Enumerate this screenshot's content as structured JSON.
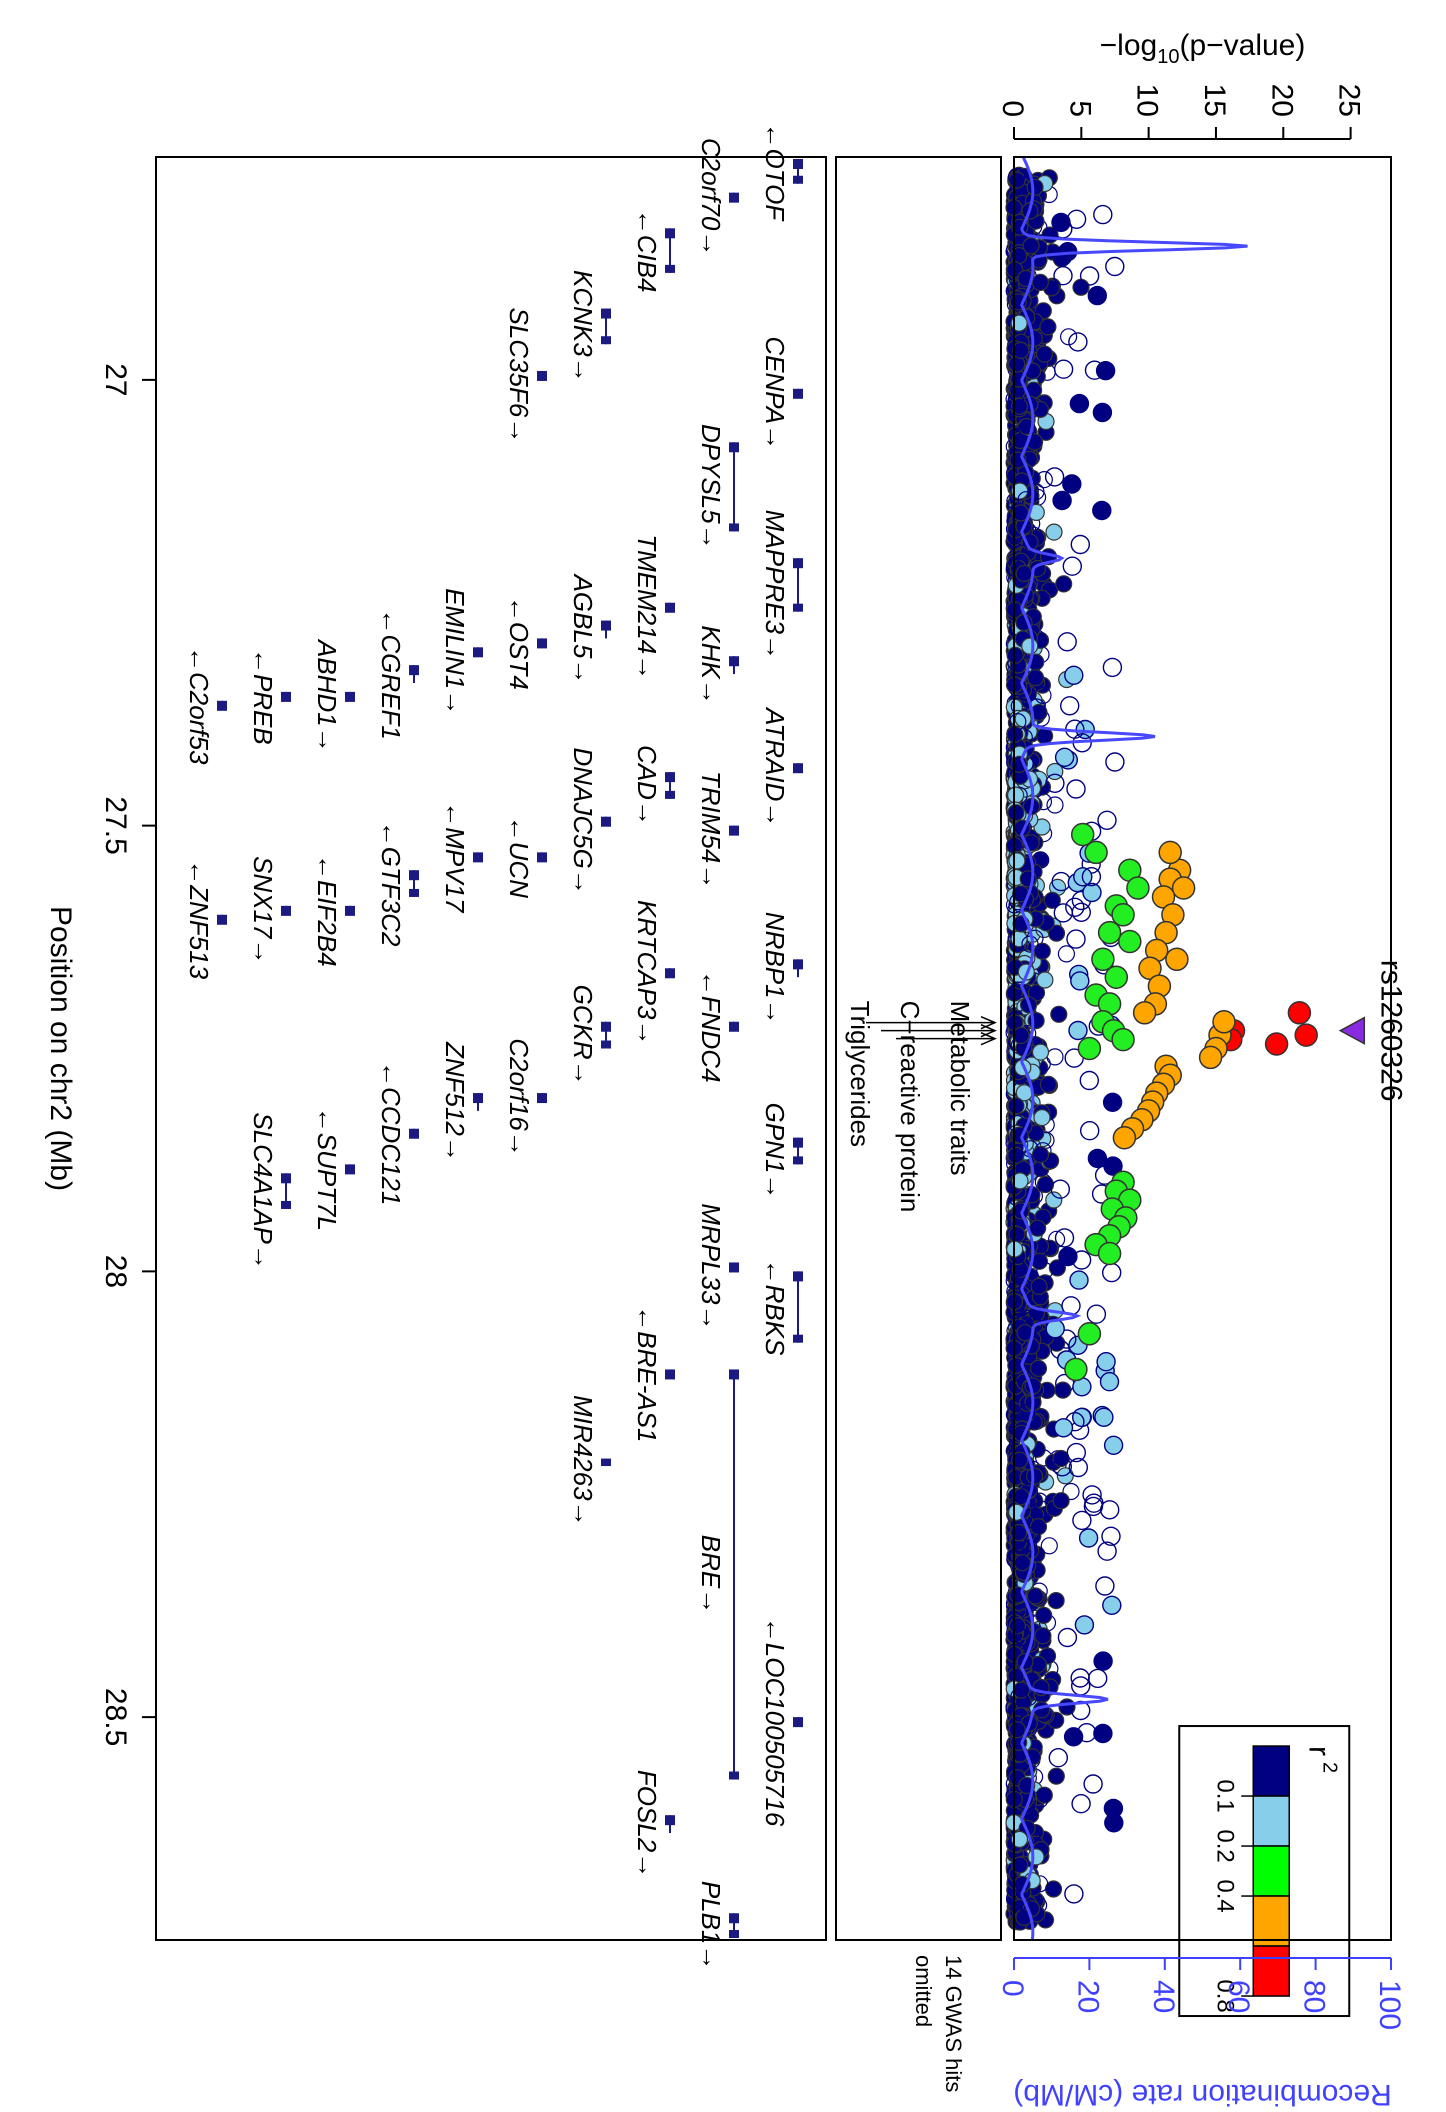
{
  "chart_data": {
    "type": "scatter",
    "x_axis": {
      "label": "Position on chr2 (Mb)",
      "range": [
        26.75,
        28.75
      ],
      "ticks": [
        {
          "value": 27,
          "label": "27"
        },
        {
          "value": 27.5,
          "label": "27.5"
        },
        {
          "value": 28,
          "label": "28"
        },
        {
          "value": 28.5,
          "label": "28.5"
        }
      ]
    },
    "y_axis": {
      "label_prefix": "−log",
      "label_sub": "10",
      "label_suffix": "(p−value)",
      "range": [
        0,
        28
      ],
      "ticks": [
        {
          "value": 0,
          "label": "0"
        },
        {
          "value": 5,
          "label": "5"
        },
        {
          "value": 10,
          "label": "10"
        },
        {
          "value": 15,
          "label": "15"
        },
        {
          "value": 20,
          "label": "20"
        },
        {
          "value": 25,
          "label": "25"
        }
      ]
    },
    "y2_axis": {
      "label": "Recombination rate (cM/Mb)",
      "range": [
        0,
        100
      ],
      "color": "#4040FF",
      "ticks": [
        {
          "value": 0,
          "label": "0"
        },
        {
          "value": 20,
          "label": "20"
        },
        {
          "value": 40,
          "label": "40"
        },
        {
          "value": 60,
          "label": "60"
        },
        {
          "value": 80,
          "label": "80"
        },
        {
          "value": 100,
          "label": "100"
        }
      ]
    },
    "lead_snp": {
      "name": "rs1260326",
      "x": 27.73,
      "y": 25.2,
      "color": "#8A2BE2"
    },
    "legend": {
      "title": "r",
      "title_sup": "2",
      "placement": "top-right",
      "bins": [
        {
          "label": "0.1",
          "color": "#000080"
        },
        {
          "label": "0.2",
          "color": "#87CEEB"
        },
        {
          "label": "0.4",
          "color": "#00FF00"
        },
        {
          "label": "",
          "color": "#FFA500"
        },
        {
          "label": "0.8",
          "color": "#FF0000"
        }
      ]
    },
    "colors": {
      "dark": "#000080",
      "light": "#87CEEB",
      "green": "#22EE22",
      "orange": "#FFA500",
      "red": "#FF0000",
      "recomb": "#4848FF",
      "gene": "#1A1A80"
    },
    "gwas_track": {
      "hits": [
        {
          "label": "Metabolic traits",
          "x": 27.73
        },
        {
          "label": "C−reactive protein",
          "x": 27.73
        },
        {
          "label": "Triglycerides",
          "x": 27.73
        }
      ],
      "omitted_note_line1": "14 GWAS hits",
      "omitted_note_line2": "omitted"
    },
    "highlight_points": [
      {
        "x": 27.71,
        "y": 21.2,
        "r2": 0.9
      },
      {
        "x": 27.735,
        "y": 21.7,
        "r2": 0.9
      },
      {
        "x": 27.745,
        "y": 19.5,
        "r2": 0.9
      },
      {
        "x": 27.73,
        "y": 16.3,
        "r2": 0.85
      },
      {
        "x": 27.74,
        "y": 16.1,
        "r2": 0.85
      },
      {
        "x": 27.735,
        "y": 15.3,
        "r2": 0.7
      },
      {
        "x": 27.75,
        "y": 15.0,
        "r2": 0.7
      },
      {
        "x": 27.76,
        "y": 14.6,
        "r2": 0.7
      },
      {
        "x": 27.72,
        "y": 15.6,
        "r2": 0.7
      },
      {
        "x": 27.77,
        "y": 11.3,
        "r2": 0.7
      },
      {
        "x": 27.78,
        "y": 11.6,
        "r2": 0.7
      },
      {
        "x": 27.79,
        "y": 11.1,
        "r2": 0.7
      },
      {
        "x": 27.8,
        "y": 10.6,
        "r2": 0.7
      },
      {
        "x": 27.81,
        "y": 10.3,
        "r2": 0.7
      },
      {
        "x": 27.82,
        "y": 10.0,
        "r2": 0.7
      },
      {
        "x": 27.83,
        "y": 9.5,
        "r2": 0.7
      },
      {
        "x": 27.84,
        "y": 8.8,
        "r2": 0.7
      },
      {
        "x": 27.85,
        "y": 8.2,
        "r2": 0.7
      },
      {
        "x": 27.55,
        "y": 12.3,
        "r2": 0.7
      },
      {
        "x": 27.56,
        "y": 11.6,
        "r2": 0.7
      },
      {
        "x": 27.57,
        "y": 12.6,
        "r2": 0.7
      },
      {
        "x": 27.58,
        "y": 11.1,
        "r2": 0.7
      },
      {
        "x": 27.6,
        "y": 11.8,
        "r2": 0.7
      },
      {
        "x": 27.62,
        "y": 11.3,
        "r2": 0.7
      },
      {
        "x": 27.64,
        "y": 10.6,
        "r2": 0.7
      },
      {
        "x": 27.65,
        "y": 12.1,
        "r2": 0.7
      },
      {
        "x": 27.66,
        "y": 10.1,
        "r2": 0.7
      },
      {
        "x": 27.68,
        "y": 10.8,
        "r2": 0.7
      },
      {
        "x": 27.7,
        "y": 10.5,
        "r2": 0.7
      },
      {
        "x": 27.71,
        "y": 9.7,
        "r2": 0.7
      },
      {
        "x": 27.53,
        "y": 11.6,
        "r2": 0.7
      },
      {
        "x": 27.55,
        "y": 8.6,
        "r2": 0.5
      },
      {
        "x": 27.57,
        "y": 9.2,
        "r2": 0.5
      },
      {
        "x": 27.59,
        "y": 7.6,
        "r2": 0.5
      },
      {
        "x": 27.6,
        "y": 8.1,
        "r2": 0.5
      },
      {
        "x": 27.62,
        "y": 7.1,
        "r2": 0.5
      },
      {
        "x": 27.63,
        "y": 8.6,
        "r2": 0.5
      },
      {
        "x": 27.65,
        "y": 6.6,
        "r2": 0.5
      },
      {
        "x": 27.67,
        "y": 7.6,
        "r2": 0.5
      },
      {
        "x": 27.69,
        "y": 6.1,
        "r2": 0.5
      },
      {
        "x": 27.7,
        "y": 7.1,
        "r2": 0.5
      },
      {
        "x": 27.72,
        "y": 6.6,
        "r2": 0.5
      },
      {
        "x": 27.73,
        "y": 7.4,
        "r2": 0.5
      },
      {
        "x": 27.74,
        "y": 8.1,
        "r2": 0.5
      },
      {
        "x": 27.75,
        "y": 5.6,
        "r2": 0.5
      },
      {
        "x": 27.53,
        "y": 6.1,
        "r2": 0.5
      },
      {
        "x": 27.51,
        "y": 5.1,
        "r2": 0.5
      },
      {
        "x": 27.9,
        "y": 8.1,
        "r2": 0.5
      },
      {
        "x": 27.91,
        "y": 7.6,
        "r2": 0.5
      },
      {
        "x": 27.92,
        "y": 8.6,
        "r2": 0.5
      },
      {
        "x": 27.93,
        "y": 7.3,
        "r2": 0.5
      },
      {
        "x": 27.94,
        "y": 8.3,
        "r2": 0.5
      },
      {
        "x": 27.95,
        "y": 7.8,
        "r2": 0.5
      },
      {
        "x": 27.96,
        "y": 7.1,
        "r2": 0.5
      },
      {
        "x": 27.97,
        "y": 6.1,
        "r2": 0.5
      },
      {
        "x": 27.98,
        "y": 7.1,
        "r2": 0.5
      },
      {
        "x": 28.07,
        "y": 5.6,
        "r2": 0.5
      },
      {
        "x": 28.11,
        "y": 4.6,
        "r2": 0.5
      }
    ],
    "genes": [
      {
        "name": "OTOF",
        "start": 26.68,
        "end": 26.78,
        "row": 0,
        "strand": "-"
      },
      {
        "name": "CENPA",
        "start": 27.01,
        "end": 27.02,
        "row": 0,
        "strand": "+"
      },
      {
        "name": "MAPPRE3",
        "start": 27.2,
        "end": 27.26,
        "row": 0,
        "strand": "+"
      },
      {
        "name": "ATRAID",
        "start": 27.43,
        "end": 27.44,
        "row": 0,
        "strand": "+"
      },
      {
        "name": "NRBP1",
        "start": 27.65,
        "end": 27.67,
        "row": 0,
        "strand": "+"
      },
      {
        "name": "GPN1",
        "start": 27.85,
        "end": 27.88,
        "row": 0,
        "strand": "+"
      },
      {
        "name": "RBKS",
        "start": 28.0,
        "end": 28.08,
        "row": 0,
        "strand": "-"
      },
      {
        "name": "LOC100505716",
        "start": 28.5,
        "end": 28.51,
        "row": 0,
        "strand": "-"
      },
      {
        "name": "C2orf70",
        "start": 26.79,
        "end": 26.8,
        "row": 1,
        "strand": "+"
      },
      {
        "name": "DPYSL5",
        "start": 27.07,
        "end": 27.17,
        "row": 1,
        "strand": "+"
      },
      {
        "name": "KHK",
        "start": 27.31,
        "end": 27.33,
        "row": 1,
        "strand": "+"
      },
      {
        "name": "TRIM54",
        "start": 27.5,
        "end": 27.51,
        "row": 1,
        "strand": "+"
      },
      {
        "name": "FNDC4",
        "start": 27.72,
        "end": 27.73,
        "row": 1,
        "strand": "-"
      },
      {
        "name": "MRPL33",
        "start": 27.99,
        "end": 28.0,
        "row": 1,
        "strand": "+"
      },
      {
        "name": "BRE",
        "start": 28.11,
        "end": 28.57,
        "row": 1,
        "strand": "+"
      },
      {
        "name": "PLB1",
        "start": 28.72,
        "end": 28.86,
        "row": 1,
        "strand": "+"
      },
      {
        "name": "CIB4",
        "start": 26.83,
        "end": 26.88,
        "row": 2,
        "strand": "-"
      },
      {
        "name": "TMEM214",
        "start": 27.25,
        "end": 27.26,
        "row": 2,
        "strand": "+"
      },
      {
        "name": "CAD",
        "start": 27.44,
        "end": 27.47,
        "row": 2,
        "strand": "+"
      },
      {
        "name": "KRTCAP3",
        "start": 27.66,
        "end": 27.67,
        "row": 2,
        "strand": "+"
      },
      {
        "name": "BRE-AS1",
        "start": 28.11,
        "end": 28.12,
        "row": 2,
        "strand": "-"
      },
      {
        "name": "FOSL2",
        "start": 28.61,
        "end": 28.63,
        "row": 2,
        "strand": "+"
      },
      {
        "name": "KCNK3",
        "start": 26.92,
        "end": 26.96,
        "row": 3,
        "strand": "+"
      },
      {
        "name": "AGBL5",
        "start": 27.27,
        "end": 27.29,
        "row": 3,
        "strand": "+"
      },
      {
        "name": "DNAJC5G",
        "start": 27.49,
        "end": 27.5,
        "row": 3,
        "strand": "+"
      },
      {
        "name": "GCKR",
        "start": 27.72,
        "end": 27.75,
        "row": 3,
        "strand": "+"
      },
      {
        "name": "MIR4263",
        "start": 28.21,
        "end": 28.215,
        "row": 3,
        "strand": "+"
      },
      {
        "name": "SLC35F6",
        "start": 26.99,
        "end": 27.0,
        "row": 4,
        "strand": "+"
      },
      {
        "name": "OST4",
        "start": 27.29,
        "end": 27.3,
        "row": 4,
        "strand": "-"
      },
      {
        "name": "UCN",
        "start": 27.53,
        "end": 27.54,
        "row": 4,
        "strand": "-"
      },
      {
        "name": "C2orf16",
        "start": 27.8,
        "end": 27.81,
        "row": 4,
        "strand": "+"
      },
      {
        "name": "EMILIN1",
        "start": 27.3,
        "end": 27.31,
        "row": 5,
        "strand": "+"
      },
      {
        "name": "MPV17",
        "start": 27.53,
        "end": 27.54,
        "row": 5,
        "strand": "-"
      },
      {
        "name": "ZNF512",
        "start": 27.8,
        "end": 27.82,
        "row": 5,
        "strand": "+"
      },
      {
        "name": "CGREF1",
        "start": 27.32,
        "end": 27.34,
        "row": 6,
        "strand": "-"
      },
      {
        "name": "GTF3C2",
        "start": 27.55,
        "end": 27.58,
        "row": 6,
        "strand": "-"
      },
      {
        "name": "CCDC121",
        "start": 27.84,
        "end": 27.85,
        "row": 6,
        "strand": "-"
      },
      {
        "name": "ABHD1",
        "start": 27.35,
        "end": 27.36,
        "row": 7,
        "strand": "+"
      },
      {
        "name": "EIF2B4",
        "start": 27.59,
        "end": 27.6,
        "row": 7,
        "strand": "-"
      },
      {
        "name": "SUPT7L",
        "start": 27.88,
        "end": 27.89,
        "row": 7,
        "strand": "-"
      },
      {
        "name": "PREB",
        "start": 27.35,
        "end": 27.36,
        "row": 8,
        "strand": "-"
      },
      {
        "name": "SNX17",
        "start": 27.59,
        "end": 27.6,
        "row": 8,
        "strand": "+"
      },
      {
        "name": "SLC4A1AP",
        "start": 27.89,
        "end": 27.93,
        "row": 8,
        "strand": "+"
      },
      {
        "name": "C2orf53",
        "start": 27.36,
        "end": 27.37,
        "row": 9,
        "strand": "-"
      },
      {
        "name": "ZNF513",
        "start": 27.6,
        "end": 27.61,
        "row": 9,
        "strand": "-"
      }
    ]
  }
}
